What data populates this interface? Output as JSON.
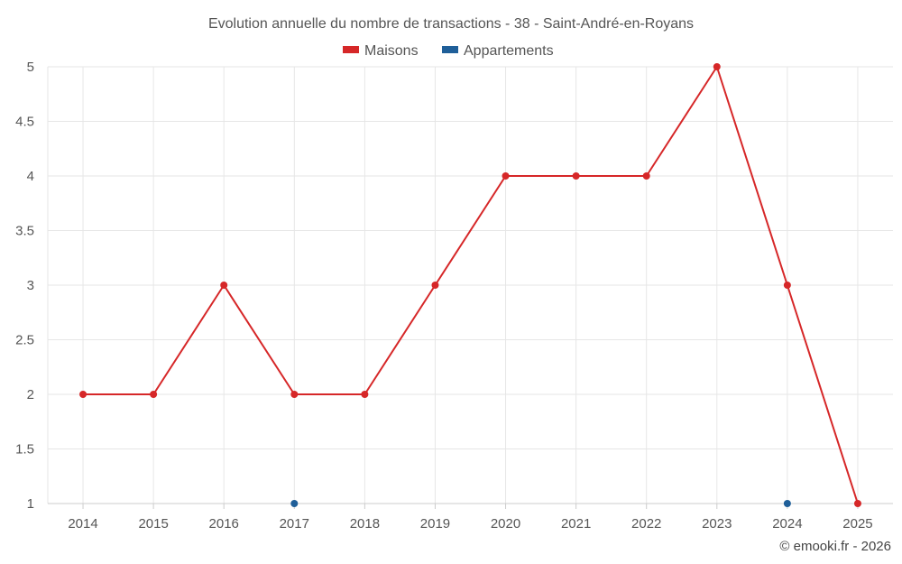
{
  "chart_data": {
    "type": "line",
    "title": "Evolution annuelle du nombre de transactions - 38 - Saint-André-en-Royans",
    "categories": [
      "2014",
      "2015",
      "2016",
      "2017",
      "2018",
      "2019",
      "2020",
      "2021",
      "2022",
      "2023",
      "2024",
      "2025"
    ],
    "series": [
      {
        "name": "Maisons",
        "color": "#d62728",
        "values": [
          2,
          2,
          3,
          2,
          2,
          3,
          4,
          4,
          4,
          5,
          3,
          1
        ]
      },
      {
        "name": "Appartements",
        "color": "#1f5f99",
        "values": [
          null,
          null,
          null,
          1,
          null,
          null,
          null,
          null,
          null,
          null,
          1,
          null
        ]
      }
    ],
    "yticks": [
      "1",
      "1.5",
      "2",
      "2.5",
      "3",
      "3.5",
      "4",
      "4.5",
      "5"
    ],
    "ylim": [
      1,
      5
    ],
    "xlabel": "",
    "ylabel": "",
    "grid": true,
    "legend": "top-center"
  },
  "credit": "© emooki.fr - 2026"
}
